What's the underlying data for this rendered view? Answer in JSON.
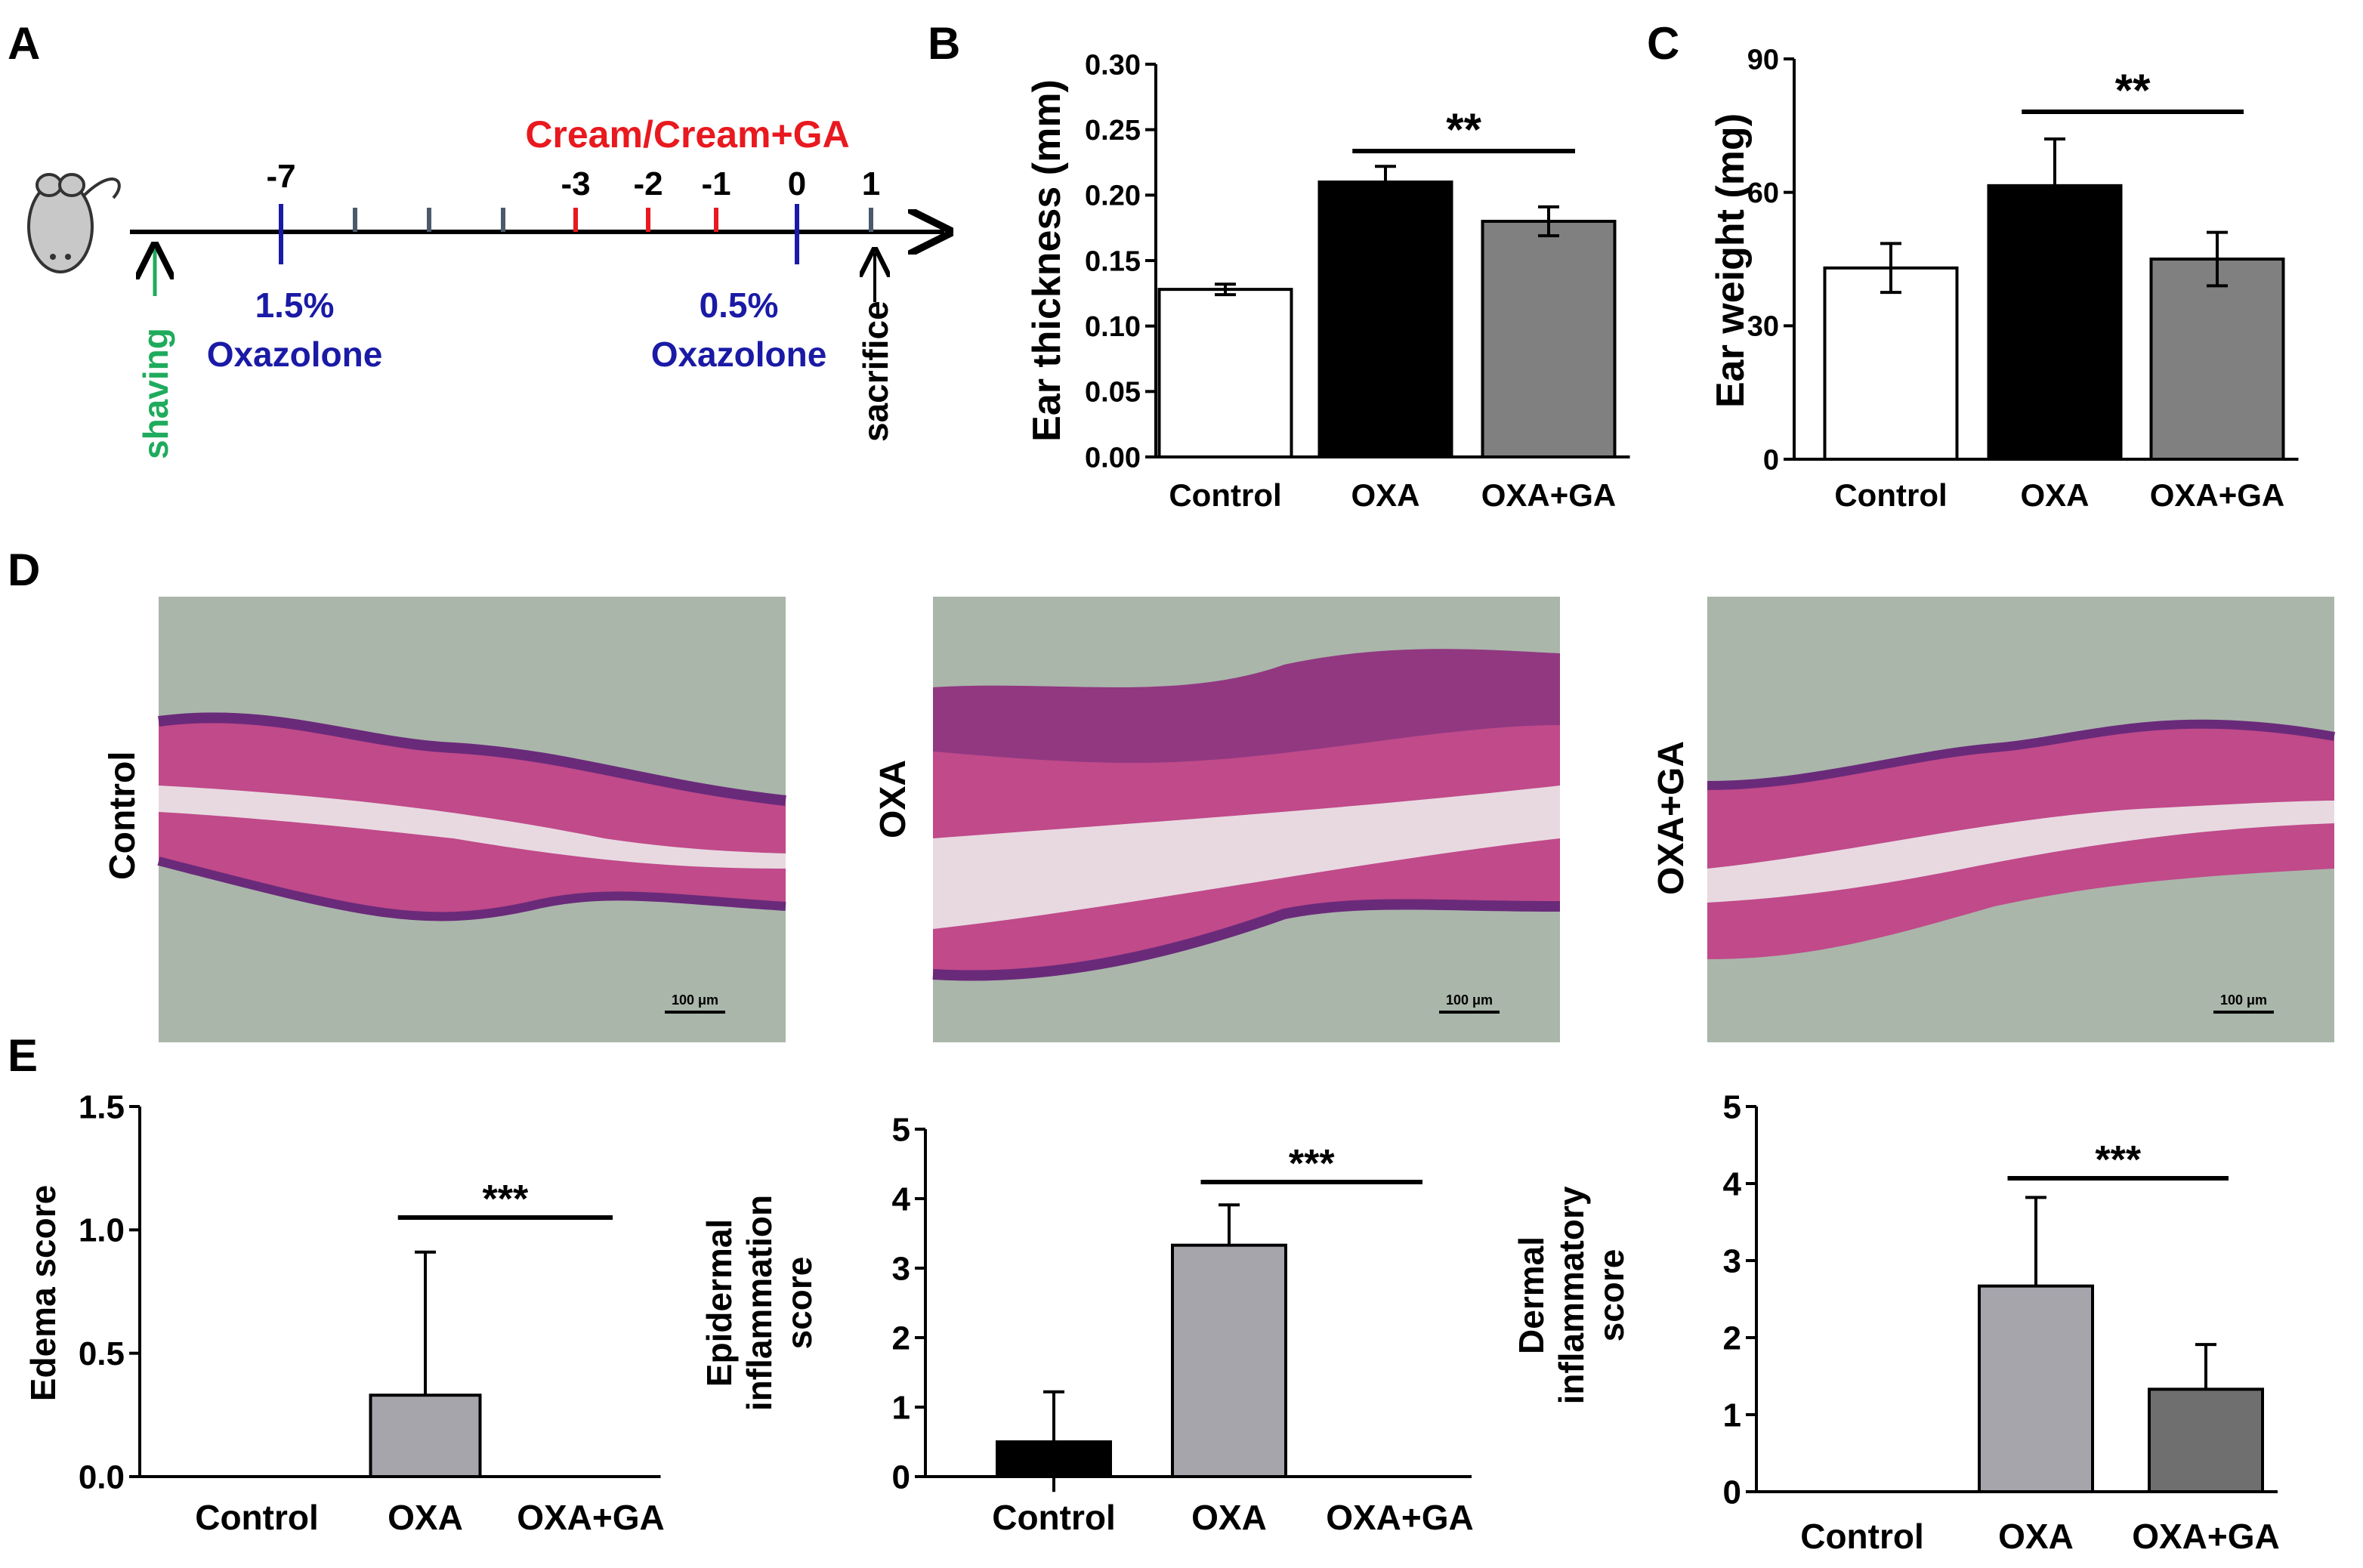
{
  "panel_labels": {
    "a": "A",
    "b": "B",
    "c": "C",
    "d": "D",
    "e": "E"
  },
  "colors": {
    "white_bar": "#ffffff",
    "black_bar": "#000000",
    "gray_bar": "#808080",
    "light_gray_bar": "#a7a5ac",
    "dark_gray_bar": "#6f6f6f",
    "timeline_red": "#e8191f",
    "timeline_blue": "#1a1aa6",
    "timeline_green": "#1fab5c",
    "tick_slate": "#4a5a6a",
    "tissue_bg": "#aab6aa",
    "tissue_pink": "#c04a8a",
    "tissue_purple": "#6a2a7a"
  },
  "timeline": {
    "treatment_label": "Cream/Cream+GA",
    "day_labels": [
      "-7",
      "-3",
      "-2",
      "-1",
      "0",
      "1"
    ],
    "shaving_label": "shaving",
    "sensitize_pct": "1.5%",
    "sensitize_agent": "Oxazolone",
    "challenge_pct": "0.5%",
    "challenge_agent": "Oxazolone",
    "sacrifice_label": "sacrifice",
    "mouse_icon": "mouse-icon"
  },
  "histology": {
    "panels": [
      {
        "label": "Control",
        "scale": "100 μm"
      },
      {
        "label": "OXA",
        "scale": "100 μm"
      },
      {
        "label": "OXA+GA",
        "scale": "100 μm"
      }
    ]
  },
  "chart_data": [
    {
      "id": "B",
      "type": "bar",
      "ylabel": "Ear thickness (mm)",
      "xlabel": "",
      "categories": [
        "Control",
        "OXA",
        "OXA+GA"
      ],
      "values": [
        0.128,
        0.21,
        0.18
      ],
      "errors": [
        0.004,
        0.012,
        0.011
      ],
      "bar_colors": [
        "#ffffff",
        "#000000",
        "#808080"
      ],
      "ylim": [
        0,
        0.3
      ],
      "yticks": [
        "0.00",
        "0.05",
        "0.10",
        "0.15",
        "0.20",
        "0.25",
        "0.30"
      ],
      "significance": {
        "from": 1,
        "to": 2,
        "label": "**"
      }
    },
    {
      "id": "C",
      "type": "bar",
      "ylabel": "Ear weight (mg)",
      "xlabel": "",
      "categories": [
        "Control",
        "OXA",
        "OXA+GA"
      ],
      "values": [
        43,
        61.5,
        45
      ],
      "errors": [
        5.5,
        10.5,
        6
      ],
      "bar_colors": [
        "#ffffff",
        "#000000",
        "#808080"
      ],
      "ylim": [
        0,
        90
      ],
      "yticks": [
        "0",
        "30",
        "60",
        "90"
      ],
      "significance": {
        "from": 1,
        "to": 2,
        "label": "**"
      }
    },
    {
      "id": "E1",
      "type": "bar",
      "ylabel": "Edema score",
      "xlabel": "",
      "categories": [
        "Control",
        "OXA",
        "OXA+GA"
      ],
      "values": [
        0,
        0.33,
        0
      ],
      "errors": [
        0,
        0.58,
        0
      ],
      "bar_colors": [
        "#ffffff",
        "#a7a5ac",
        "#808080"
      ],
      "ylim": [
        0,
        1.5
      ],
      "yticks": [
        "0.0",
        "0.5",
        "1.0",
        "1.5"
      ],
      "significance": {
        "from": 1,
        "to": 2,
        "label": "***"
      }
    },
    {
      "id": "E2",
      "type": "bar",
      "ylabel": "Epidermal inflammation score",
      "xlabel": "",
      "ylabel_lines": [
        "Epidermal",
        "inflammation",
        "score"
      ],
      "categories": [
        "Control",
        "OXA",
        "OXA+GA"
      ],
      "values": [
        0.5,
        3.33,
        0
      ],
      "errors": [
        0.72,
        0.58,
        0
      ],
      "bar_colors": [
        "#000000",
        "#a7a5ac",
        "#808080"
      ],
      "ylim": [
        0,
        5
      ],
      "yticks": [
        "0",
        "1",
        "2",
        "3",
        "4",
        "5"
      ],
      "significance": {
        "from": 1,
        "to": 2,
        "label": "***"
      }
    },
    {
      "id": "E3",
      "type": "bar",
      "ylabel": "Dermal inflammatory score",
      "xlabel": "",
      "ylabel_lines": [
        "Dermal",
        "inflammatory",
        "score"
      ],
      "categories": [
        "Control",
        "OXA",
        "OXA+GA"
      ],
      "values": [
        0,
        2.67,
        1.33
      ],
      "errors": [
        0,
        1.15,
        0.58
      ],
      "bar_colors": [
        "#ffffff",
        "#a7a5ac",
        "#6f6f6f"
      ],
      "ylim": [
        0,
        5
      ],
      "yticks": [
        "0",
        "1",
        "2",
        "3",
        "4",
        "5"
      ],
      "significance": {
        "from": 1,
        "to": 2,
        "label": "***"
      }
    }
  ]
}
